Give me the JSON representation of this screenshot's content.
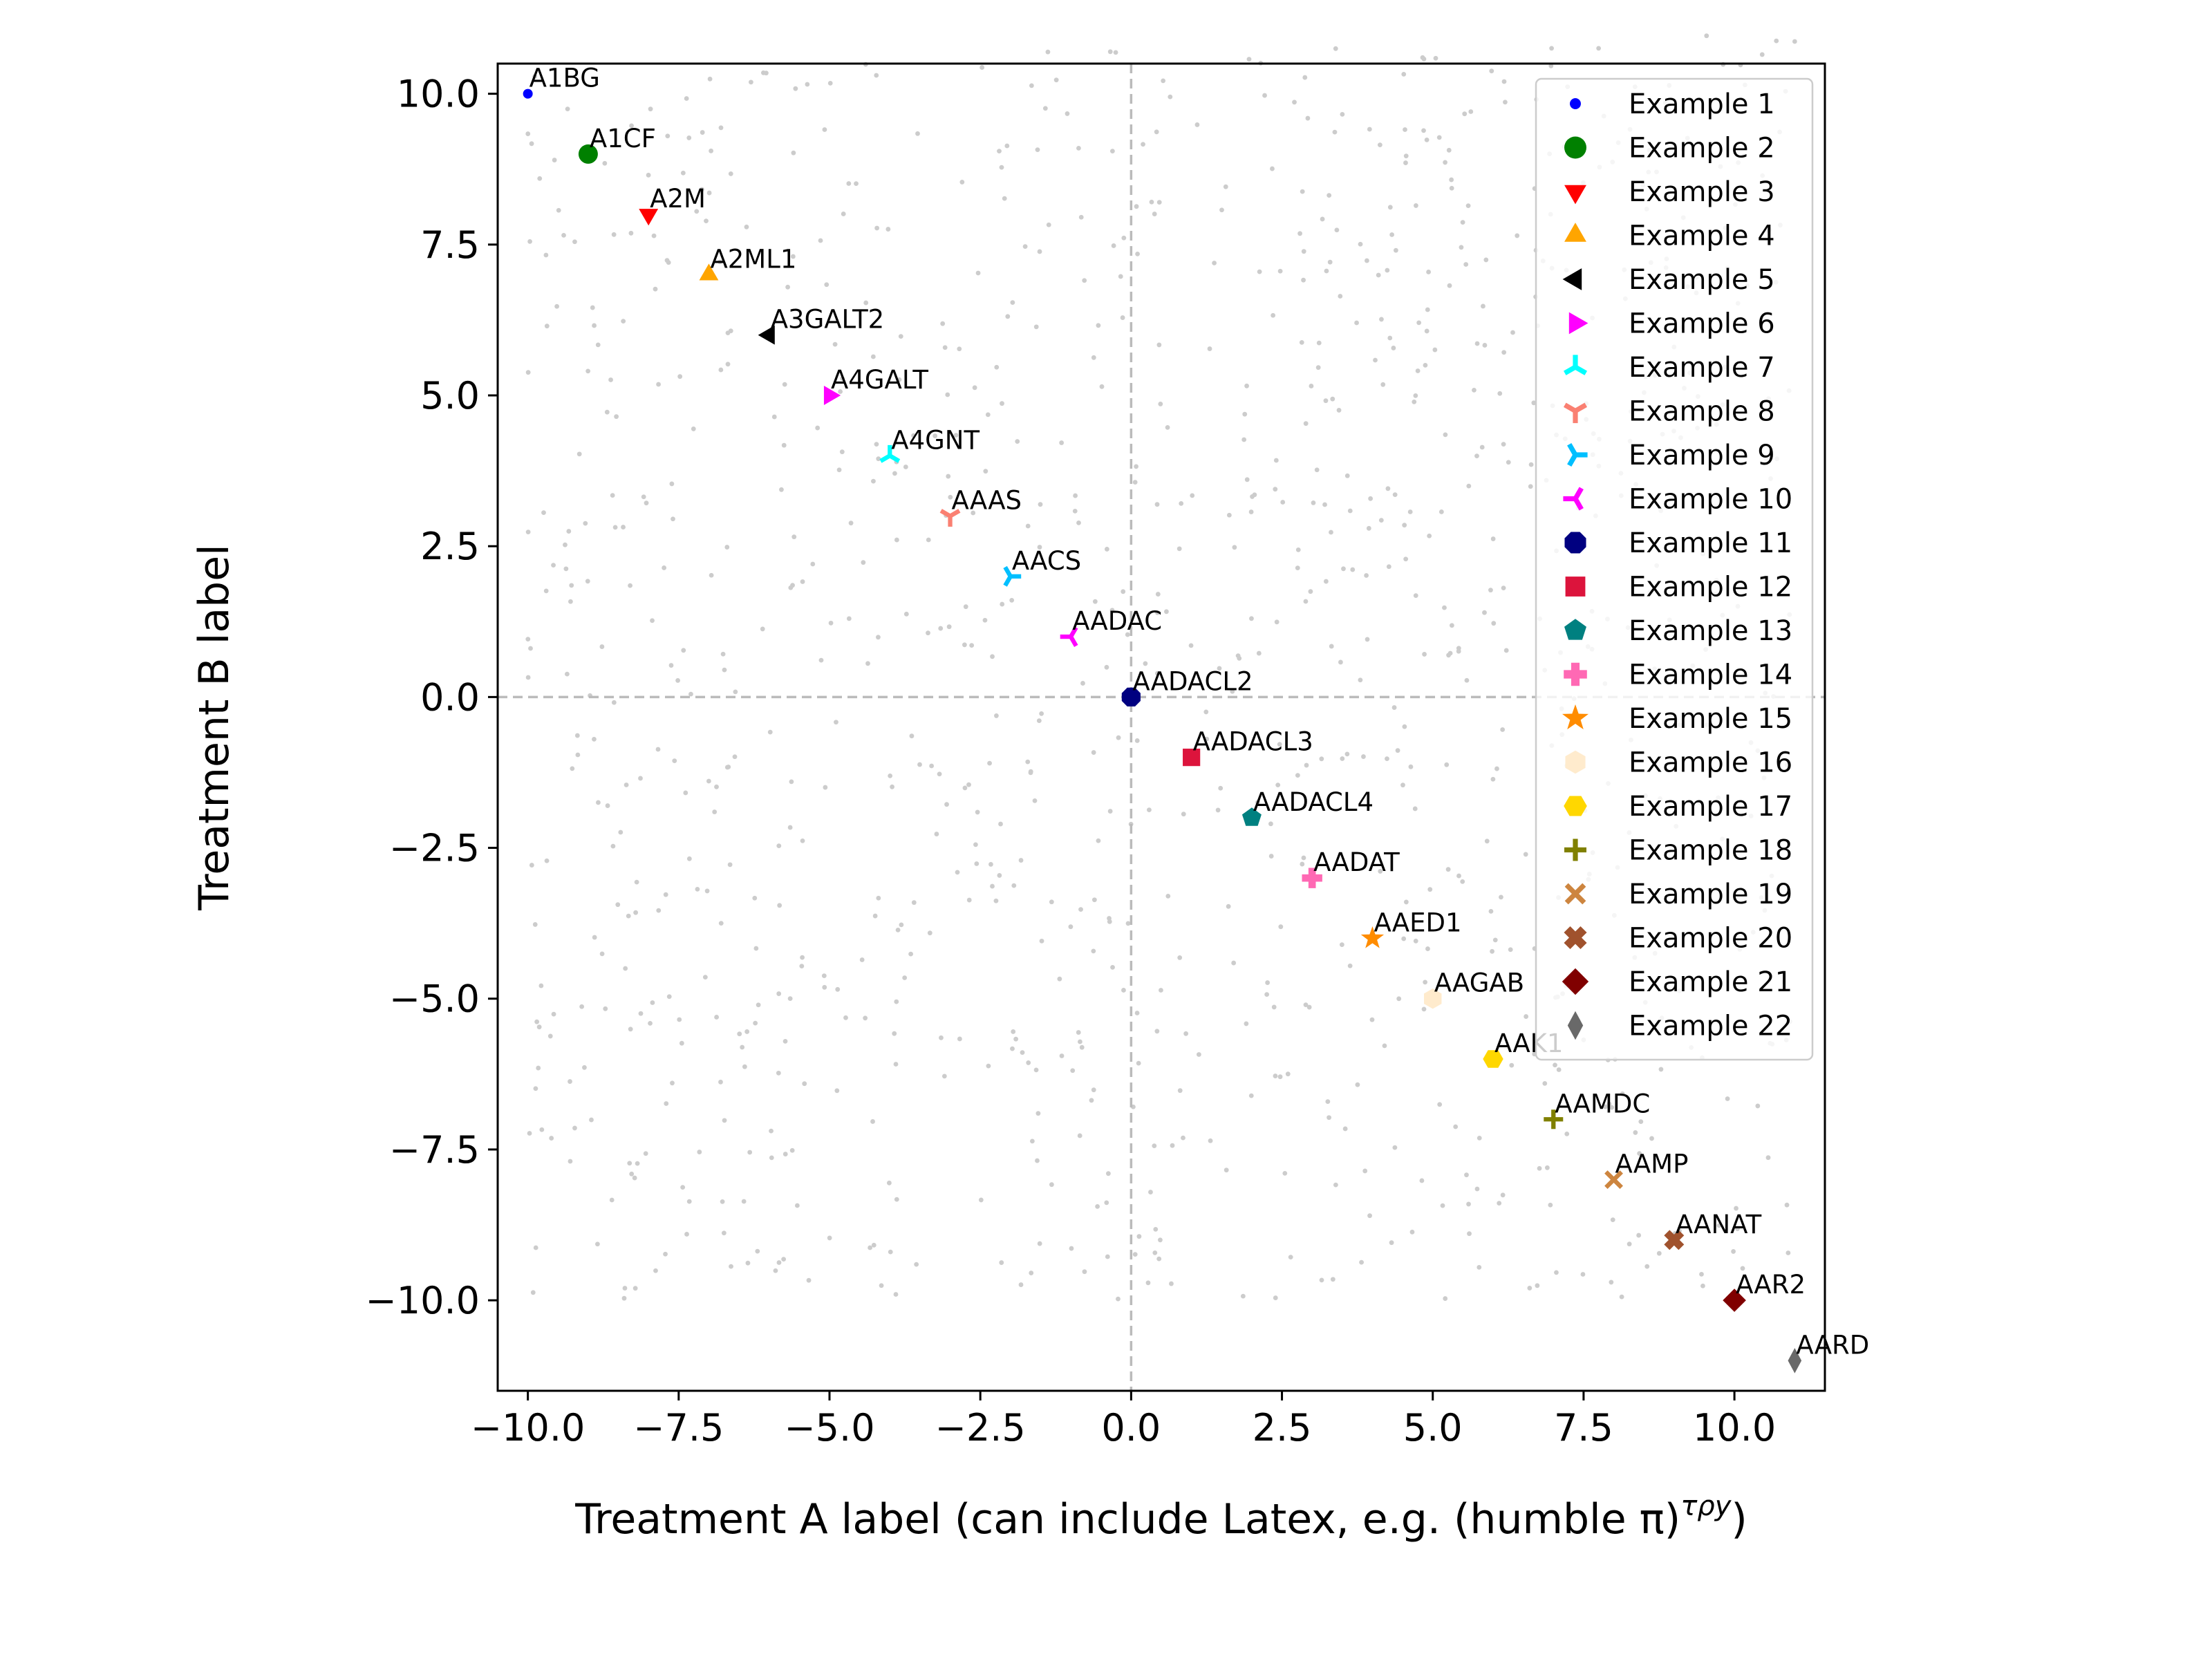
{
  "chart_data": {
    "type": "scatter",
    "xlabel": "Treatment A label (can include Latex, e.g. (humble π)",
    "xlabel_sup": "τρy",
    "xlabel_end": ")",
    "ylabel": "Treatment B label",
    "xlim": [
      -10.5,
      11.5
    ],
    "ylim": [
      -11.5,
      10.5
    ],
    "xticks": [
      -10.0,
      -7.5,
      -5.0,
      -2.5,
      0.0,
      2.5,
      5.0,
      7.5,
      10.0
    ],
    "yticks": [
      -10.0,
      -7.5,
      -5.0,
      -2.5,
      0.0,
      2.5,
      5.0,
      7.5,
      10.0
    ],
    "xtick_labels": [
      "−10.0",
      "−7.5",
      "−5.0",
      "−2.5",
      "0.0",
      "2.5",
      "5.0",
      "7.5",
      "10.0"
    ],
    "ytick_labels": [
      "−10.0",
      "−7.5",
      "−5.0",
      "−2.5",
      "0.0",
      "2.5",
      "5.0",
      "7.5",
      "10.0"
    ],
    "reference_lines": {
      "x": 0,
      "y": 0,
      "style": "dashed",
      "color": "#bbbbbb"
    },
    "legend_position": "upper right",
    "background_points": {
      "color": "#cccccc",
      "count": 1000,
      "range": [
        -10,
        11
      ]
    },
    "series": [
      {
        "name": "Example 1",
        "label": "A1BG",
        "x": -10,
        "y": 10,
        "marker": "point",
        "color": "#0000ff"
      },
      {
        "name": "Example 2",
        "label": "A1CF",
        "x": -9,
        "y": 9,
        "marker": "circle",
        "color": "#008000"
      },
      {
        "name": "Example 3",
        "label": "A2M",
        "x": -8,
        "y": 8,
        "marker": "triangle-down",
        "color": "#ff0000"
      },
      {
        "name": "Example 4",
        "label": "A2ML1",
        "x": -7,
        "y": 7,
        "marker": "triangle-up",
        "color": "#ffa500"
      },
      {
        "name": "Example 5",
        "label": "A3GALT2",
        "x": -6,
        "y": 6,
        "marker": "triangle-left",
        "color": "#000000"
      },
      {
        "name": "Example 6",
        "label": "A4GALT",
        "x": -5,
        "y": 5,
        "marker": "triangle-right",
        "color": "#ff00ff"
      },
      {
        "name": "Example 7",
        "label": "A4GNT",
        "x": -4,
        "y": 4,
        "marker": "tri-down",
        "color": "#00ffff"
      },
      {
        "name": "Example 8",
        "label": "AAAS",
        "x": -3,
        "y": 3,
        "marker": "tri-up",
        "color": "#fa8072"
      },
      {
        "name": "Example 9",
        "label": "AACS",
        "x": -2,
        "y": 2,
        "marker": "tri-left",
        "color": "#00bfff"
      },
      {
        "name": "Example 10",
        "label": "AADAC",
        "x": -1,
        "y": 1,
        "marker": "tri-right",
        "color": "#ff00ff"
      },
      {
        "name": "Example 11",
        "label": "AADACL2",
        "x": 0,
        "y": 0,
        "marker": "octagon",
        "color": "#000080"
      },
      {
        "name": "Example 12",
        "label": "AADACL3",
        "x": 1,
        "y": -1,
        "marker": "square",
        "color": "#dc143c"
      },
      {
        "name": "Example 13",
        "label": "AADACL4",
        "x": 2,
        "y": -2,
        "marker": "pentagon",
        "color": "#008080"
      },
      {
        "name": "Example 14",
        "label": "AADAT",
        "x": 3,
        "y": -3,
        "marker": "plus-filled",
        "color": "#ff69b4"
      },
      {
        "name": "Example 15",
        "label": "AAED1",
        "x": 4,
        "y": -4,
        "marker": "star",
        "color": "#ff8c00"
      },
      {
        "name": "Example 16",
        "label": "AAGAB",
        "x": 5,
        "y": -5,
        "marker": "hexagon",
        "color": "#ffebcd"
      },
      {
        "name": "Example 17",
        "label": "AAK1",
        "x": 6,
        "y": -6,
        "marker": "hexagon2",
        "color": "#ffd700"
      },
      {
        "name": "Example 18",
        "label": "AAMDC",
        "x": 7,
        "y": -7,
        "marker": "plus",
        "color": "#808000"
      },
      {
        "name": "Example 19",
        "label": "AAMP",
        "x": 8,
        "y": -8,
        "marker": "x",
        "color": "#cd853f"
      },
      {
        "name": "Example 20",
        "label": "AANAT",
        "x": 9,
        "y": -9,
        "marker": "x-filled",
        "color": "#a0522d"
      },
      {
        "name": "Example 21",
        "label": "AAR2",
        "x": 10,
        "y": -10,
        "marker": "diamond",
        "color": "#800000"
      },
      {
        "name": "Example 22",
        "label": "AARD",
        "x": 11,
        "y": -11,
        "marker": "thin-diamond",
        "color": "#696969"
      }
    ]
  }
}
